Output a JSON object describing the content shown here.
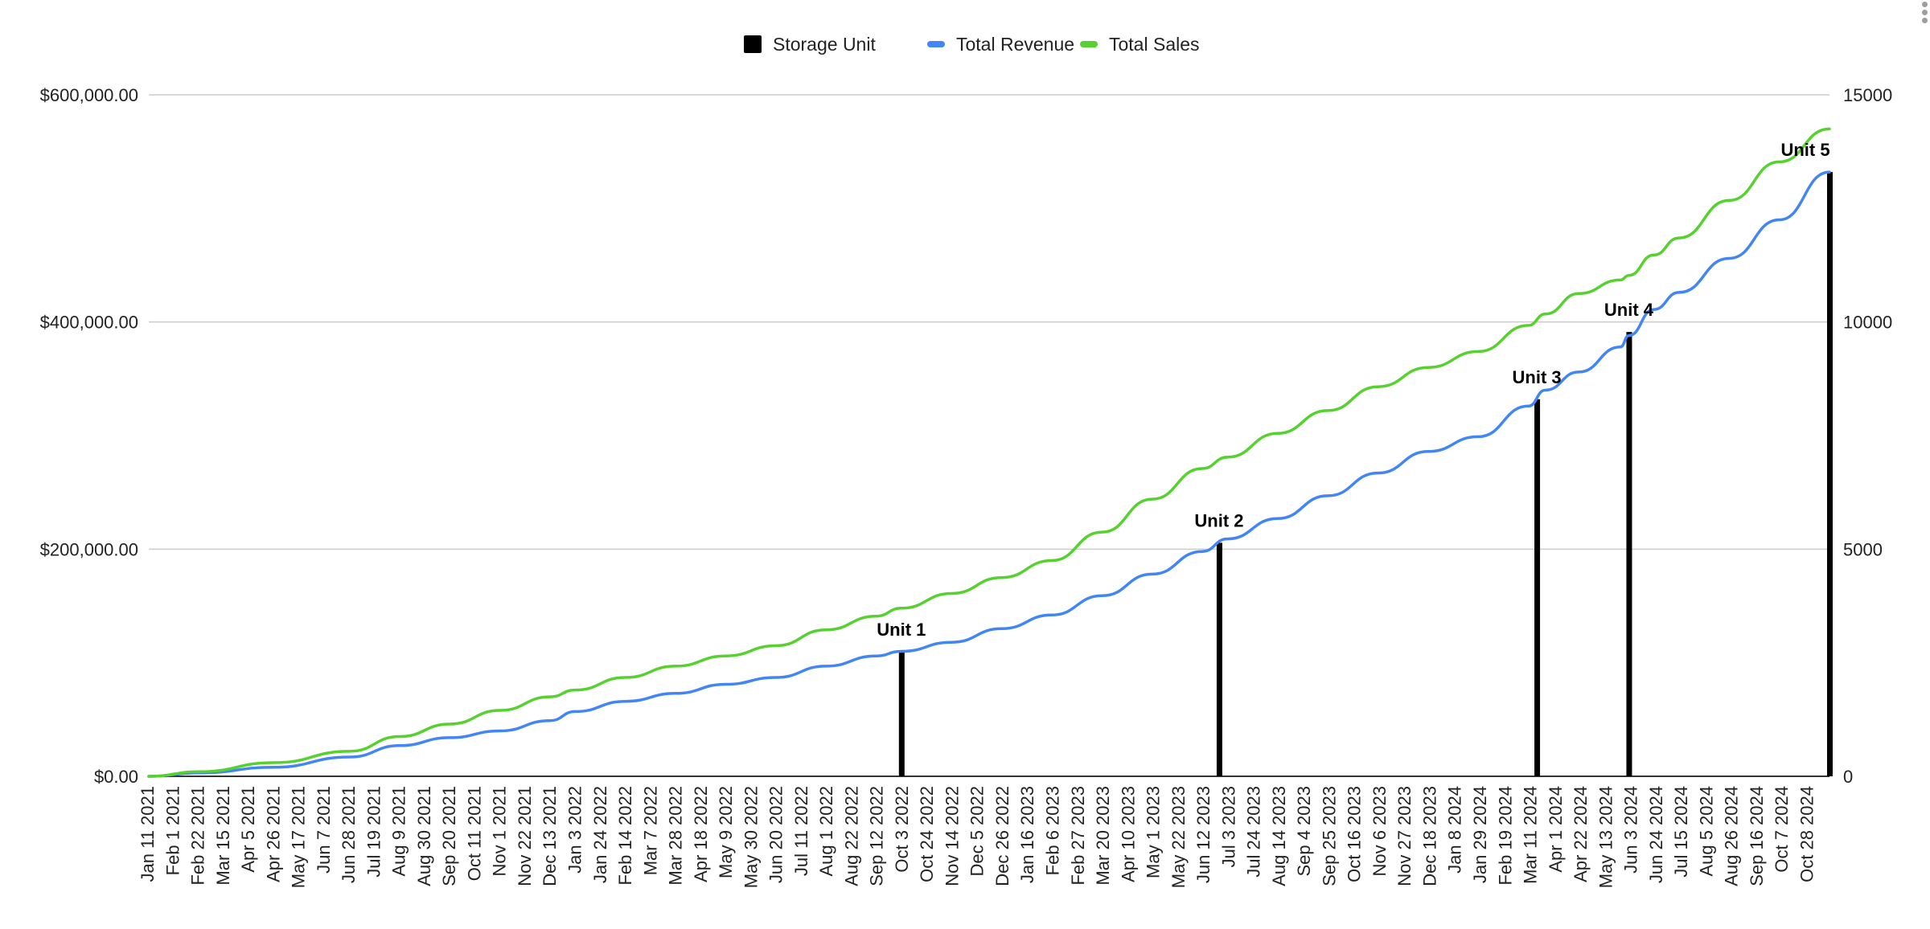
{
  "chart_data": {
    "type": "line",
    "title": "",
    "legend": {
      "placement": "top-center",
      "entries": [
        {
          "name": "Storage Unit",
          "color": "#000000",
          "symbol": "square"
        },
        {
          "name": "Total Revenue",
          "color": "#4285f4",
          "symbol": "line"
        },
        {
          "name": "Total Sales",
          "color": "#56d12f",
          "symbol": "line"
        }
      ]
    },
    "y_left": {
      "min": 0,
      "max": 600000,
      "ticks": [
        {
          "value": 0,
          "label": "$0.00"
        },
        {
          "value": 200000,
          "label": "$200,000.00"
        },
        {
          "value": 400000,
          "label": "$400,000.00"
        },
        {
          "value": 600000,
          "label": "$600,000.00"
        }
      ],
      "gridlines": true
    },
    "y_right": {
      "min": 0,
      "max": 15000,
      "ticks": [
        {
          "value": 0,
          "label": "0"
        },
        {
          "value": 5000,
          "label": "5000"
        },
        {
          "value": 10000,
          "label": "10000"
        },
        {
          "value": 15000,
          "label": "15000"
        }
      ]
    },
    "x": {
      "start": "2021-01-11",
      "end": "2024-11-18",
      "tick_labels": [
        "Jan 11 2021",
        "Feb 1 2021",
        "Feb 22 2021",
        "Mar 15 2021",
        "Apr 5 2021",
        "Apr 26 2021",
        "May 17 2021",
        "Jun 7 2021",
        "Jun 28 2021",
        "Jul 19 2021",
        "Aug 9 2021",
        "Aug 30 2021",
        "Sep 20 2021",
        "Oct 11 2021",
        "Nov 1 2021",
        "Nov 22 2021",
        "Dec 13 2021",
        "Jan 3 2022",
        "Jan 24 2022",
        "Feb 14 2022",
        "Mar 7 2022",
        "Mar 28 2022",
        "Apr 18 2022",
        "May 9 2022",
        "May 30 2022",
        "Jun 20 2022",
        "Jul 11 2022",
        "Aug 1 2022",
        "Aug 22 2022",
        "Sep 12 2022",
        "Oct 3 2022",
        "Oct 24 2022",
        "Nov 14 2022",
        "Dec 5 2022",
        "Dec 26 2022",
        "Jan 16 2023",
        "Feb 6 2023",
        "Feb 27 2023",
        "Mar 20 2023",
        "Apr 10 2023",
        "May 1 2023",
        "May 22 2023",
        "Jun 12 2023",
        "Jul 3 2023",
        "Jul 24 2023",
        "Aug 14 2023",
        "Sep 4 2023",
        "Sep 25 2023",
        "Oct 16 2023",
        "Nov 6 2023",
        "Nov 27 2023",
        "Dec 18 2023",
        "Jan 8 2024",
        "Jan 29 2024",
        "Feb 19 2024",
        "Mar 11 2024",
        "Apr 1 2024",
        "Apr 22 2024",
        "May 13 2024",
        "Jun 3 2024",
        "Jun 24 2024",
        "Jul 15 2024",
        "Aug 5 2024",
        "Aug 26 2024",
        "Sep 16 2024",
        "Oct 7 2024",
        "Oct 28 2024"
      ]
    },
    "series": [
      {
        "name": "Total Revenue",
        "axis": "left",
        "color": "#4285f4",
        "x": [
          "2021-01-11",
          "2021-02-22",
          "2021-04-26",
          "2021-06-28",
          "2021-08-09",
          "2021-09-20",
          "2021-11-01",
          "2021-12-13",
          "2022-01-03",
          "2022-02-14",
          "2022-03-28",
          "2022-05-09",
          "2022-06-20",
          "2022-08-01",
          "2022-09-12",
          "2022-10-03",
          "2022-11-14",
          "2022-12-26",
          "2023-02-06",
          "2023-03-20",
          "2023-05-01",
          "2023-06-12",
          "2023-07-03",
          "2023-08-14",
          "2023-09-25",
          "2023-11-06",
          "2023-12-18",
          "2024-01-29",
          "2024-03-11",
          "2024-03-25",
          "2024-04-22",
          "2024-05-27",
          "2024-06-03",
          "2024-06-24",
          "2024-07-15",
          "2024-08-26",
          "2024-10-07",
          "2024-11-18"
        ],
        "values": [
          0,
          3000,
          8000,
          17000,
          27000,
          34000,
          40000,
          49000,
          57000,
          66000,
          73000,
          81000,
          87000,
          97000,
          106000,
          110000,
          118000,
          130000,
          142000,
          159000,
          178000,
          198000,
          209000,
          227000,
          247000,
          267000,
          286000,
          299000,
          326000,
          340000,
          356000,
          378000,
          388000,
          411000,
          426000,
          456000,
          490000,
          532000
        ]
      },
      {
        "name": "Total Sales",
        "axis": "left",
        "color": "#56d12f",
        "x": [
          "2021-01-11",
          "2021-02-22",
          "2021-04-26",
          "2021-06-28",
          "2021-08-09",
          "2021-09-20",
          "2021-11-01",
          "2021-12-13",
          "2022-01-03",
          "2022-02-14",
          "2022-03-28",
          "2022-05-09",
          "2022-06-20",
          "2022-08-01",
          "2022-09-12",
          "2022-10-03",
          "2022-11-14",
          "2022-12-26",
          "2023-02-06",
          "2023-03-20",
          "2023-05-01",
          "2023-06-12",
          "2023-07-03",
          "2023-08-14",
          "2023-09-25",
          "2023-11-06",
          "2023-12-18",
          "2024-01-29",
          "2024-03-11",
          "2024-03-25",
          "2024-04-22",
          "2024-05-27",
          "2024-06-03",
          "2024-06-24",
          "2024-07-15",
          "2024-08-26",
          "2024-10-07",
          "2024-11-18"
        ],
        "values": [
          0,
          4000,
          12000,
          22000,
          35000,
          46000,
          58000,
          70000,
          76000,
          87000,
          97000,
          106000,
          115000,
          129000,
          141000,
          148000,
          161000,
          175000,
          190000,
          215000,
          244000,
          271000,
          281000,
          302000,
          322000,
          343000,
          360000,
          374000,
          397000,
          407000,
          425000,
          437000,
          441000,
          459000,
          474000,
          507000,
          541000,
          570000
        ]
      },
      {
        "name": "Storage Unit",
        "axis": "right",
        "color": "#000000",
        "type": "bar",
        "x": [
          "2022-10-03",
          "2023-06-26",
          "2024-03-18",
          "2024-06-03",
          "2024-11-18"
        ],
        "values": [
          2740,
          5140,
          8300,
          9780,
          13300
        ],
        "labels": [
          "Unit 1",
          "Unit 2",
          "Unit 3",
          "Unit 4",
          "Unit 5"
        ]
      }
    ]
  }
}
